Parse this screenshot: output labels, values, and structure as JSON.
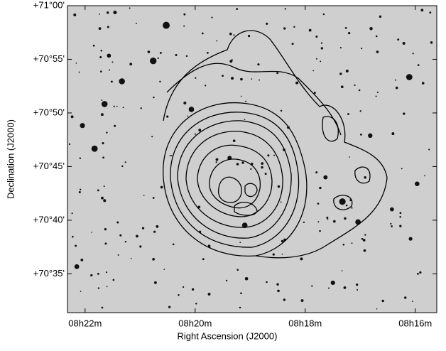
{
  "chart_data": {
    "type": "image",
    "xlabel": "Right Ascension (J2000)",
    "ylabel": "Declination (J2000)",
    "xlim": [
      502.32,
      495.61
    ],
    "ylim": [
      70.523,
      71.0
    ],
    "xticks": [
      {
        "value": 502,
        "label": "08h22m"
      },
      {
        "value": 500,
        "label": "08h20m"
      },
      {
        "value": 498,
        "label": "08h18m"
      },
      {
        "value": 496,
        "label": "08h16m"
      }
    ],
    "yticks": [
      {
        "value": 71.0,
        "label": "+71°00'"
      },
      {
        "value": 70.91667,
        "label": "+70°55'"
      },
      {
        "value": 70.83333,
        "label": "+70°50'"
      },
      {
        "value": 70.75,
        "label": "+70°45'"
      },
      {
        "value": 70.66667,
        "label": "+70°40'"
      },
      {
        "value": 70.58333,
        "label": "+70°35'"
      }
    ]
  }
}
